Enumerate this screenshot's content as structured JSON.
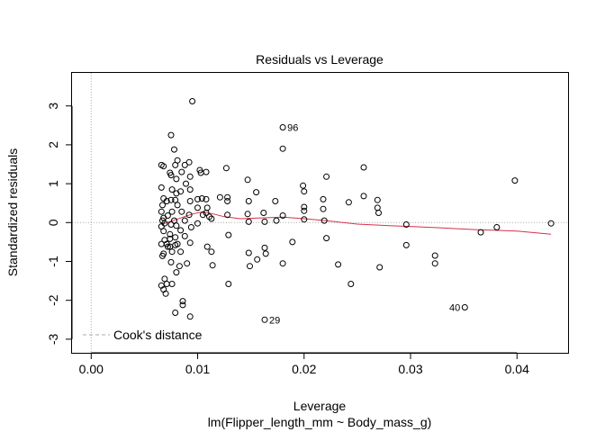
{
  "chart_data": {
    "type": "scatter",
    "title": "Residuals vs Leverage",
    "xlabel": "Leverage",
    "ylabel": "Standardized residuals",
    "subtitle": "lm(Flipper_length_mm ~ Body_mass_g)",
    "xlim": [
      -0.0018,
      0.0448
    ],
    "ylim": [
      -3.35,
      3.85
    ],
    "x_ticks": [
      0.0,
      0.01,
      0.02,
      0.03,
      0.04
    ],
    "x_tick_labels": [
      "0.00",
      "0.01",
      "0.02",
      "0.03",
      "0.04"
    ],
    "y_ticks": [
      -3,
      -2,
      -1,
      0,
      1,
      2,
      3
    ],
    "y_tick_labels": [
      "-3",
      "-2",
      "-1",
      "0",
      "1",
      "2",
      "3"
    ],
    "legend": {
      "label": "Cook's distance",
      "placement": "bottom-left",
      "color": "#aaaaaa"
    },
    "reference_lines": {
      "vertical_x": 0,
      "horizontal_y": 0,
      "color": "#aaaaaa"
    },
    "grid": false,
    "colors": {
      "points": "#000000",
      "smoother": "#d6304b"
    },
    "points": [
      [
        0.0066,
        1.48
      ],
      [
        0.0068,
        1.45
      ],
      [
        0.0066,
        0.9
      ],
      [
        0.0068,
        0.62
      ],
      [
        0.0067,
        0.45
      ],
      [
        0.0066,
        0.28
      ],
      [
        0.0068,
        0.12
      ],
      [
        0.0067,
        0.05
      ],
      [
        0.0069,
        -0.02
      ],
      [
        0.0066,
        -0.1
      ],
      [
        0.0068,
        -0.22
      ],
      [
        0.0069,
        -0.45
      ],
      [
        0.0066,
        -0.55
      ],
      [
        0.0068,
        -0.8
      ],
      [
        0.0067,
        -0.86
      ],
      [
        0.0069,
        -1.45
      ],
      [
        0.0066,
        -1.62
      ],
      [
        0.0068,
        -1.72
      ],
      [
        0.0071,
        -1.58
      ],
      [
        0.007,
        -1.83
      ],
      [
        0.0071,
        -0.55
      ],
      [
        0.0072,
        0.18
      ],
      [
        0.0071,
        0.55
      ],
      [
        0.0072,
        -0.62
      ],
      [
        0.0074,
        1.28
      ],
      [
        0.0075,
        1.22
      ],
      [
        0.0076,
        0.85
      ],
      [
        0.0075,
        0.58
      ],
      [
        0.0076,
        0.28
      ],
      [
        0.0075,
        -0.05
      ],
      [
        0.0074,
        -0.3
      ],
      [
        0.0076,
        -0.75
      ],
      [
        0.0075,
        -1.02
      ],
      [
        0.0076,
        -1.58
      ],
      [
        0.0074,
        -0.62
      ],
      [
        0.0074,
        -0.42
      ],
      [
        0.0075,
        2.25
      ],
      [
        0.0078,
        1.88
      ],
      [
        0.0079,
        1.48
      ],
      [
        0.0081,
        1.6
      ],
      [
        0.008,
        1.12
      ],
      [
        0.008,
        0.75
      ],
      [
        0.0079,
        0.58
      ],
      [
        0.0081,
        0.45
      ],
      [
        0.0078,
        0.05
      ],
      [
        0.008,
        -0.08
      ],
      [
        0.0079,
        -0.38
      ],
      [
        0.0081,
        -0.55
      ],
      [
        0.0079,
        -0.58
      ],
      [
        0.008,
        -1.28
      ],
      [
        0.0079,
        -2.32
      ],
      [
        0.0084,
        0.8
      ],
      [
        0.0085,
        0.28
      ],
      [
        0.0084,
        -0.2
      ],
      [
        0.0084,
        -0.75
      ],
      [
        0.0083,
        -1.12
      ],
      [
        0.0085,
        1.3
      ],
      [
        0.0086,
        -2.02
      ],
      [
        0.0086,
        -2.12
      ],
      [
        0.0088,
        1.48
      ],
      [
        0.0089,
        1.0
      ],
      [
        0.0088,
        0.05
      ],
      [
        0.0088,
        -0.35
      ],
      [
        0.009,
        -1.05
      ],
      [
        0.0092,
        1.55
      ],
      [
        0.0093,
        1.18
      ],
      [
        0.0093,
        0.85
      ],
      [
        0.0093,
        0.55
      ],
      [
        0.0092,
        0.2
      ],
      [
        0.0094,
        -0.12
      ],
      [
        0.0093,
        -0.52
      ],
      [
        0.0093,
        -2.42
      ],
      [
        0.0095,
        3.12
      ],
      [
        0.01,
        0.6
      ],
      [
        0.01,
        0.38
      ],
      [
        0.01,
        -0.02
      ],
      [
        0.0102,
        1.35
      ],
      [
        0.0103,
        1.28
      ],
      [
        0.0104,
        0.62
      ],
      [
        0.0105,
        0.2
      ],
      [
        0.0108,
        1.3
      ],
      [
        0.0108,
        0.6
      ],
      [
        0.0109,
        0.38
      ],
      [
        0.0108,
        0.25
      ],
      [
        0.0109,
        -0.62
      ],
      [
        0.0111,
        0.15
      ],
      [
        0.0113,
        0.1
      ],
      [
        0.0113,
        -0.75
      ],
      [
        0.0114,
        -1.1
      ],
      [
        0.0121,
        0.65
      ],
      [
        0.0127,
        1.4
      ],
      [
        0.0128,
        0.65
      ],
      [
        0.0128,
        0.55
      ],
      [
        0.0128,
        0.2
      ],
      [
        0.0129,
        -0.32
      ],
      [
        0.0129,
        -1.58
      ],
      [
        0.0147,
        1.1
      ],
      [
        0.0148,
        0.55
      ],
      [
        0.0147,
        0.22
      ],
      [
        0.0148,
        0.02
      ],
      [
        0.0148,
        -0.78
      ],
      [
        0.0149,
        -1.12
      ],
      [
        0.0155,
        0.78
      ],
      [
        0.0156,
        -0.95
      ],
      [
        0.0162,
        0.25
      ],
      [
        0.0163,
        0.02
      ],
      [
        0.0163,
        -0.65
      ],
      [
        0.0164,
        -0.8
      ],
      [
        0.0163,
        -2.5
      ],
      [
        0.0173,
        0.55
      ],
      [
        0.0174,
        0.05
      ],
      [
        0.018,
        2.45
      ],
      [
        0.018,
        1.9
      ],
      [
        0.018,
        0.18
      ],
      [
        0.018,
        -1.05
      ],
      [
        0.0189,
        -0.5
      ],
      [
        0.0199,
        0.95
      ],
      [
        0.02,
        0.8
      ],
      [
        0.02,
        0.4
      ],
      [
        0.02,
        0.3
      ],
      [
        0.02,
        0.08
      ],
      [
        0.0218,
        0.6
      ],
      [
        0.0218,
        0.35
      ],
      [
        0.0219,
        0.05
      ],
      [
        0.0221,
        1.18
      ],
      [
        0.0221,
        -0.4
      ],
      [
        0.0232,
        -1.08
      ],
      [
        0.0242,
        0.52
      ],
      [
        0.0244,
        -1.58
      ],
      [
        0.0256,
        0.68
      ],
      [
        0.0256,
        1.42
      ],
      [
        0.0269,
        0.58
      ],
      [
        0.0269,
        0.38
      ],
      [
        0.027,
        0.25
      ],
      [
        0.0271,
        -1.15
      ],
      [
        0.0296,
        -0.05
      ],
      [
        0.0296,
        -0.58
      ],
      [
        0.0323,
        -0.85
      ],
      [
        0.0323,
        -1.05
      ],
      [
        0.0351,
        -2.18
      ],
      [
        0.0366,
        -0.25
      ],
      [
        0.0381,
        -0.12
      ],
      [
        0.0398,
        1.08
      ],
      [
        0.0432,
        -0.02
      ]
    ],
    "point_labels": [
      {
        "text": "96",
        "x": 0.018,
        "y": 2.45,
        "side": "right"
      },
      {
        "text": "29",
        "x": 0.0163,
        "y": -2.5,
        "side": "right"
      },
      {
        "text": "40",
        "x": 0.0351,
        "y": -2.18,
        "side": "left"
      }
    ],
    "smoother": [
      [
        0.0066,
        -0.05
      ],
      [
        0.008,
        0.08
      ],
      [
        0.0095,
        0.22
      ],
      [
        0.0105,
        0.28
      ],
      [
        0.0115,
        0.22
      ],
      [
        0.0125,
        0.15
      ],
      [
        0.014,
        0.1
      ],
      [
        0.016,
        0.12
      ],
      [
        0.018,
        0.14
      ],
      [
        0.02,
        0.1
      ],
      [
        0.022,
        0.05
      ],
      [
        0.025,
        -0.04
      ],
      [
        0.028,
        -0.08
      ],
      [
        0.03,
        -0.1
      ],
      [
        0.033,
        -0.14
      ],
      [
        0.036,
        -0.18
      ],
      [
        0.038,
        -0.2
      ],
      [
        0.04,
        -0.22
      ],
      [
        0.0432,
        -0.3
      ]
    ]
  }
}
